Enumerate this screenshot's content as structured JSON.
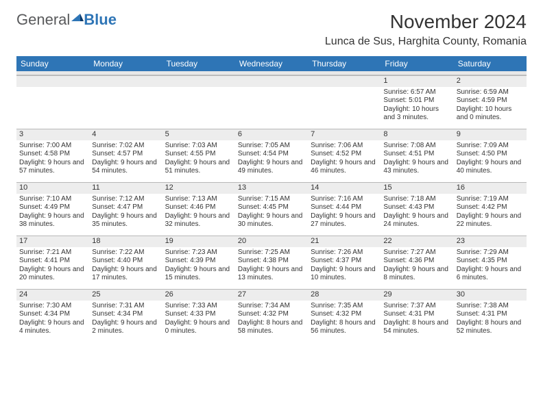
{
  "logo": {
    "text1": "General",
    "text2": "Blue"
  },
  "title": "November 2024",
  "location": "Lunca de Sus, Harghita County, Romania",
  "day_headers": [
    "Sunday",
    "Monday",
    "Tuesday",
    "Wednesday",
    "Thursday",
    "Friday",
    "Saturday"
  ],
  "header_bg": "#2e75b6",
  "header_fg": "#ffffff",
  "daynum_bg": "#ededed",
  "border_color": "#b8b8b8",
  "text_color": "#333333",
  "font_size_cell": 10,
  "weeks": [
    [
      null,
      null,
      null,
      null,
      null,
      {
        "n": "1",
        "sr": "6:57 AM",
        "ss": "5:01 PM",
        "dl": "10 hours and 3 minutes."
      },
      {
        "n": "2",
        "sr": "6:59 AM",
        "ss": "4:59 PM",
        "dl": "10 hours and 0 minutes."
      }
    ],
    [
      {
        "n": "3",
        "sr": "7:00 AM",
        "ss": "4:58 PM",
        "dl": "9 hours and 57 minutes."
      },
      {
        "n": "4",
        "sr": "7:02 AM",
        "ss": "4:57 PM",
        "dl": "9 hours and 54 minutes."
      },
      {
        "n": "5",
        "sr": "7:03 AM",
        "ss": "4:55 PM",
        "dl": "9 hours and 51 minutes."
      },
      {
        "n": "6",
        "sr": "7:05 AM",
        "ss": "4:54 PM",
        "dl": "9 hours and 49 minutes."
      },
      {
        "n": "7",
        "sr": "7:06 AM",
        "ss": "4:52 PM",
        "dl": "9 hours and 46 minutes."
      },
      {
        "n": "8",
        "sr": "7:08 AM",
        "ss": "4:51 PM",
        "dl": "9 hours and 43 minutes."
      },
      {
        "n": "9",
        "sr": "7:09 AM",
        "ss": "4:50 PM",
        "dl": "9 hours and 40 minutes."
      }
    ],
    [
      {
        "n": "10",
        "sr": "7:10 AM",
        "ss": "4:49 PM",
        "dl": "9 hours and 38 minutes."
      },
      {
        "n": "11",
        "sr": "7:12 AM",
        "ss": "4:47 PM",
        "dl": "9 hours and 35 minutes."
      },
      {
        "n": "12",
        "sr": "7:13 AM",
        "ss": "4:46 PM",
        "dl": "9 hours and 32 minutes."
      },
      {
        "n": "13",
        "sr": "7:15 AM",
        "ss": "4:45 PM",
        "dl": "9 hours and 30 minutes."
      },
      {
        "n": "14",
        "sr": "7:16 AM",
        "ss": "4:44 PM",
        "dl": "9 hours and 27 minutes."
      },
      {
        "n": "15",
        "sr": "7:18 AM",
        "ss": "4:43 PM",
        "dl": "9 hours and 24 minutes."
      },
      {
        "n": "16",
        "sr": "7:19 AM",
        "ss": "4:42 PM",
        "dl": "9 hours and 22 minutes."
      }
    ],
    [
      {
        "n": "17",
        "sr": "7:21 AM",
        "ss": "4:41 PM",
        "dl": "9 hours and 20 minutes."
      },
      {
        "n": "18",
        "sr": "7:22 AM",
        "ss": "4:40 PM",
        "dl": "9 hours and 17 minutes."
      },
      {
        "n": "19",
        "sr": "7:23 AM",
        "ss": "4:39 PM",
        "dl": "9 hours and 15 minutes."
      },
      {
        "n": "20",
        "sr": "7:25 AM",
        "ss": "4:38 PM",
        "dl": "9 hours and 13 minutes."
      },
      {
        "n": "21",
        "sr": "7:26 AM",
        "ss": "4:37 PM",
        "dl": "9 hours and 10 minutes."
      },
      {
        "n": "22",
        "sr": "7:27 AM",
        "ss": "4:36 PM",
        "dl": "9 hours and 8 minutes."
      },
      {
        "n": "23",
        "sr": "7:29 AM",
        "ss": "4:35 PM",
        "dl": "9 hours and 6 minutes."
      }
    ],
    [
      {
        "n": "24",
        "sr": "7:30 AM",
        "ss": "4:34 PM",
        "dl": "9 hours and 4 minutes."
      },
      {
        "n": "25",
        "sr": "7:31 AM",
        "ss": "4:34 PM",
        "dl": "9 hours and 2 minutes."
      },
      {
        "n": "26",
        "sr": "7:33 AM",
        "ss": "4:33 PM",
        "dl": "9 hours and 0 minutes."
      },
      {
        "n": "27",
        "sr": "7:34 AM",
        "ss": "4:32 PM",
        "dl": "8 hours and 58 minutes."
      },
      {
        "n": "28",
        "sr": "7:35 AM",
        "ss": "4:32 PM",
        "dl": "8 hours and 56 minutes."
      },
      {
        "n": "29",
        "sr": "7:37 AM",
        "ss": "4:31 PM",
        "dl": "8 hours and 54 minutes."
      },
      {
        "n": "30",
        "sr": "7:38 AM",
        "ss": "4:31 PM",
        "dl": "8 hours and 52 minutes."
      }
    ]
  ],
  "labels": {
    "sunrise": "Sunrise:",
    "sunset": "Sunset:",
    "daylight": "Daylight:"
  }
}
